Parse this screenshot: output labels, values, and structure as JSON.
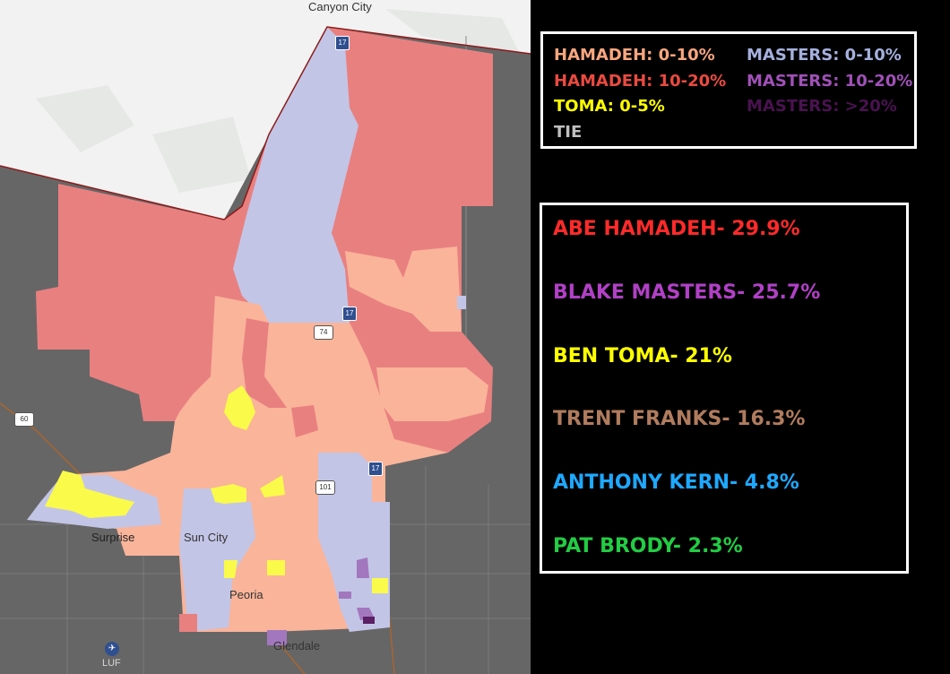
{
  "map": {
    "place_labels": {
      "canyon_city": "Canyon City",
      "surprise": "Surprise",
      "sun_city": "Sun City",
      "peoria": "Peoria",
      "glendale": "Glendale",
      "luf": "LUF"
    },
    "road_shields": {
      "i17_north": "17",
      "i17_mid": "17",
      "i17_south": "17",
      "sr74": "74",
      "sr101": "101",
      "us60": "60"
    },
    "colors": {
      "hamadeh_0_10": "#f9b49a",
      "hamadeh_10_20": "#e98080",
      "masters_0_10": "#c3c5e6",
      "masters_10_20": "#a277bd",
      "masters_gt20": "#5b2066",
      "toma_0_5": "#fafa4a",
      "outside": "#666666",
      "basemap": "#f2f2f2"
    }
  },
  "legend": {
    "items": [
      {
        "label": "HAMADEH: 0-10%",
        "color": "#f9a67e"
      },
      {
        "label": "HAMADEH: 10-20%",
        "color": "#ea4a40"
      },
      {
        "label": "TOMA: 0-5%",
        "color": "#ffff00"
      },
      {
        "label": "TIE",
        "color": "#c0c0c0"
      },
      {
        "label": "MASTERS: 0-10%",
        "color": "#a5b0de"
      },
      {
        "label": "MASTERS: 10-20%",
        "color": "#a050b8"
      },
      {
        "label": "MASTERS: >20%",
        "color": "#4a1250"
      }
    ]
  },
  "results": [
    {
      "label": "ABE HAMADEH- 29.9%",
      "color": "#ff2a2a"
    },
    {
      "label": "BLAKE MASTERS- 25.7%",
      "color": "#b140c6"
    },
    {
      "label": "BEN TOMA- 21%",
      "color": "#ffff00"
    },
    {
      "label": "TRENT FRANKS- 16.3%",
      "color": "#b07c5e"
    },
    {
      "label": "ANTHONY KERN- 4.8%",
      "color": "#1ea8ff"
    },
    {
      "label": "PAT BRODY- 2.3%",
      "color": "#22cc44"
    }
  ]
}
